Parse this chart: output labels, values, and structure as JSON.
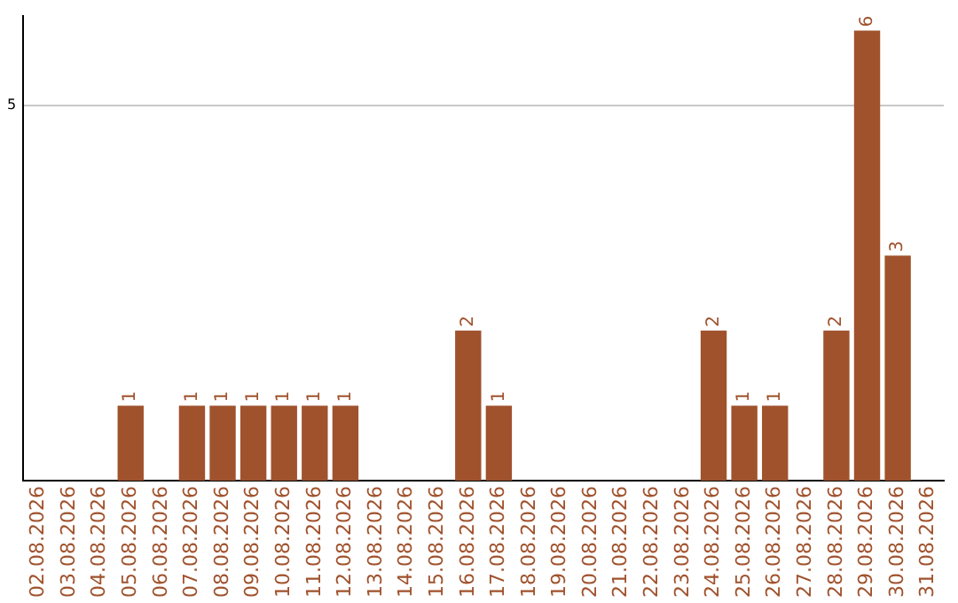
{
  "chart_data": {
    "type": "bar",
    "categories": [
      "02.08.2026",
      "03.08.2026",
      "04.08.2026",
      "05.08.2026",
      "06.08.2026",
      "07.08.2026",
      "08.08.2026",
      "09.08.2026",
      "10.08.2026",
      "11.08.2026",
      "12.08.2026",
      "13.08.2026",
      "14.08.2026",
      "15.08.2026",
      "16.08.2026",
      "17.08.2026",
      "18.08.2026",
      "19.08.2026",
      "20.08.2026",
      "21.08.2026",
      "22.08.2026",
      "23.08.2026",
      "24.08.2026",
      "25.08.2026",
      "26.08.2026",
      "27.08.2026",
      "28.08.2026",
      "29.08.2026",
      "30.08.2026",
      "31.08.2026"
    ],
    "values": [
      0,
      0,
      0,
      1,
      0,
      1,
      1,
      1,
      1,
      1,
      1,
      0,
      0,
      0,
      2,
      1,
      0,
      0,
      0,
      0,
      0,
      0,
      2,
      1,
      1,
      0,
      2,
      6,
      3,
      0
    ],
    "value_labels": [
      null,
      null,
      null,
      "1",
      null,
      "1",
      "1",
      "1",
      "1",
      "1",
      "1",
      null,
      null,
      null,
      "2",
      "1",
      null,
      null,
      null,
      null,
      null,
      null,
      "2",
      "1",
      "1",
      null,
      "2",
      "6",
      "3",
      null
    ],
    "color": "#a0522d",
    "ylim": [
      0,
      6.2
    ],
    "yticks": [
      5
    ],
    "grid": "y",
    "legend": false
  }
}
